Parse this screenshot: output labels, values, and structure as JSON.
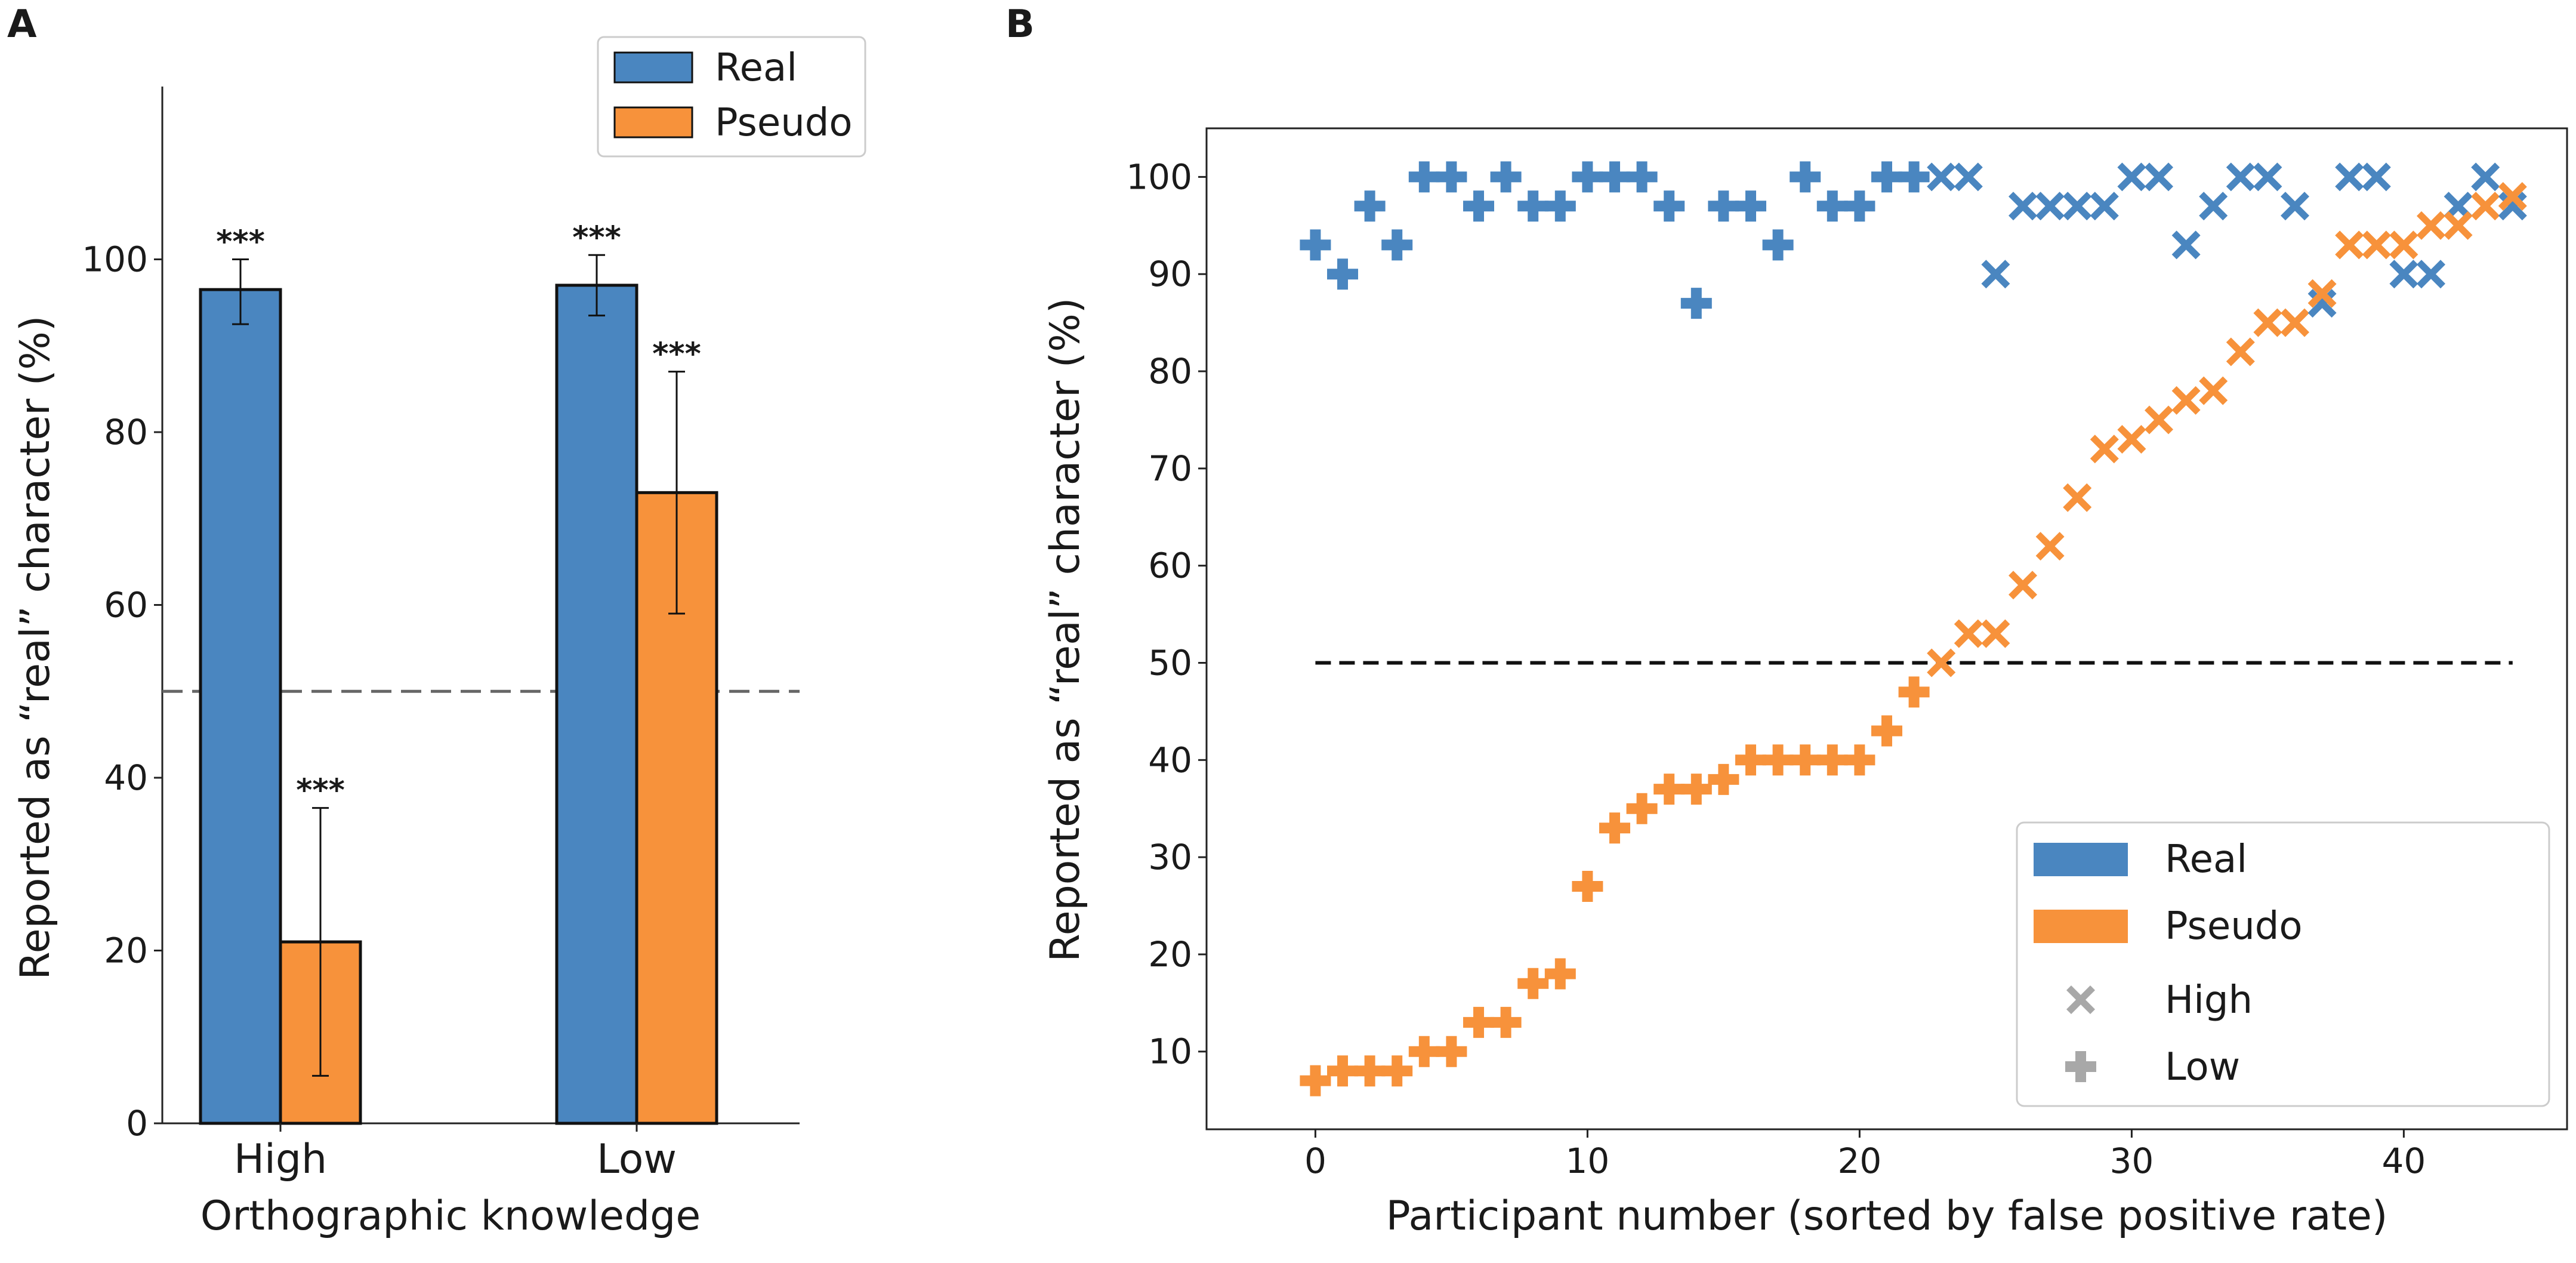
{
  "chart_data": [
    {
      "panel": "A",
      "type": "bar",
      "categories": [
        "High",
        "Low"
      ],
      "series": [
        {
          "name": "Real",
          "color": "#4a86c0",
          "values": [
            96.5,
            97
          ],
          "err_low": [
            92.5,
            93.5
          ],
          "err_high": [
            100,
            100.5
          ],
          "stars": [
            "***",
            "***"
          ]
        },
        {
          "name": "Pseudo",
          "color": "#f7923b",
          "values": [
            21,
            73
          ],
          "err_low": [
            5.5,
            59
          ],
          "err_high": [
            36.5,
            87
          ],
          "stars": [
            "***",
            "***"
          ]
        }
      ],
      "chance_level": 50,
      "xlabel": "Orthographic knowledge",
      "ylabel": "Reported as “real” character (%)",
      "ylim": [
        0,
        120
      ],
      "yticks": [
        "0",
        "20",
        "40",
        "60",
        "80",
        "100"
      ],
      "legend": [
        "Real",
        "Pseudo"
      ],
      "legend_position": "top-right"
    },
    {
      "panel": "B",
      "type": "scatter",
      "xlabel": "Participant number (sorted by false positive rate)",
      "ylabel": "Reported as “real” character (%)",
      "xlim": [
        -4,
        46
      ],
      "ylim": [
        2,
        105
      ],
      "xticks": [
        "0",
        "10",
        "20",
        "30",
        "40"
      ],
      "yticks": [
        "10",
        "20",
        "30",
        "40",
        "50",
        "60",
        "70",
        "80",
        "90",
        "100"
      ],
      "chance_level": 50,
      "chance_range": [
        0,
        44
      ],
      "participants": [
        {
          "x": 0,
          "real": 93,
          "pseudo": 7,
          "group": "Low"
        },
        {
          "x": 1,
          "real": 90,
          "pseudo": 8,
          "group": "Low"
        },
        {
          "x": 2,
          "real": 97,
          "pseudo": 8,
          "group": "Low"
        },
        {
          "x": 3,
          "real": 93,
          "pseudo": 8,
          "group": "Low"
        },
        {
          "x": 4,
          "real": 100,
          "pseudo": 10,
          "group": "Low"
        },
        {
          "x": 5,
          "real": 100,
          "pseudo": 10,
          "group": "Low"
        },
        {
          "x": 6,
          "real": 97,
          "pseudo": 13,
          "group": "Low"
        },
        {
          "x": 7,
          "real": 100,
          "pseudo": 13,
          "group": "Low"
        },
        {
          "x": 8,
          "real": 97,
          "pseudo": 17,
          "group": "Low"
        },
        {
          "x": 9,
          "real": 97,
          "pseudo": 18,
          "group": "Low"
        },
        {
          "x": 10,
          "real": 100,
          "pseudo": 27,
          "group": "Low"
        },
        {
          "x": 11,
          "real": 100,
          "pseudo": 33,
          "group": "Low"
        },
        {
          "x": 12,
          "real": 100,
          "pseudo": 35,
          "group": "Low"
        },
        {
          "x": 13,
          "real": 97,
          "pseudo": 37,
          "group": "Low"
        },
        {
          "x": 14,
          "real": 87,
          "pseudo": 37,
          "group": "Low"
        },
        {
          "x": 15,
          "real": 97,
          "pseudo": 38,
          "group": "Low"
        },
        {
          "x": 16,
          "real": 97,
          "pseudo": 40,
          "group": "Low"
        },
        {
          "x": 17,
          "real": 93,
          "pseudo": 40,
          "group": "Low"
        },
        {
          "x": 18,
          "real": 100,
          "pseudo": 40,
          "group": "Low"
        },
        {
          "x": 19,
          "real": 97,
          "pseudo": 40,
          "group": "Low"
        },
        {
          "x": 20,
          "real": 97,
          "pseudo": 40,
          "group": "Low"
        },
        {
          "x": 21,
          "real": 100,
          "pseudo": 43,
          "group": "Low"
        },
        {
          "x": 22,
          "real": 100,
          "pseudo": 47,
          "group": "Low"
        },
        {
          "x": 23,
          "real": 100,
          "pseudo": 50,
          "group": "High"
        },
        {
          "x": 24,
          "real": 100,
          "pseudo": 53,
          "group": "High"
        },
        {
          "x": 25,
          "real": 90,
          "pseudo": 53,
          "group": "High"
        },
        {
          "x": 26,
          "real": 97,
          "pseudo": 58,
          "group": "High"
        },
        {
          "x": 27,
          "real": 97,
          "pseudo": 62,
          "group": "High"
        },
        {
          "x": 28,
          "real": 97,
          "pseudo": 67,
          "group": "High"
        },
        {
          "x": 29,
          "real": 97,
          "pseudo": 72,
          "group": "High"
        },
        {
          "x": 30,
          "real": 100,
          "pseudo": 73,
          "group": "High"
        },
        {
          "x": 31,
          "real": 100,
          "pseudo": 75,
          "group": "High"
        },
        {
          "x": 32,
          "real": 93,
          "pseudo": 77,
          "group": "High"
        },
        {
          "x": 33,
          "real": 97,
          "pseudo": 78,
          "group": "High"
        },
        {
          "x": 34,
          "real": 100,
          "pseudo": 82,
          "group": "High"
        },
        {
          "x": 35,
          "real": 100,
          "pseudo": 85,
          "group": "High"
        },
        {
          "x": 36,
          "real": 97,
          "pseudo": 85,
          "group": "High"
        },
        {
          "x": 37,
          "real": 87,
          "pseudo": 88,
          "group": "High"
        },
        {
          "x": 38,
          "real": 100,
          "pseudo": 93,
          "group": "High"
        },
        {
          "x": 39,
          "real": 100,
          "pseudo": 93,
          "group": "High"
        },
        {
          "x": 40,
          "real": 90,
          "pseudo": 93,
          "group": "High"
        },
        {
          "x": 41,
          "real": 90,
          "pseudo": 95,
          "group": "High"
        },
        {
          "x": 42,
          "real": 97,
          "pseudo": 95,
          "group": "High"
        },
        {
          "x": 43,
          "real": 100,
          "pseudo": 97,
          "group": "High"
        },
        {
          "x": 44,
          "real": 97,
          "pseudo": 98,
          "group": "High"
        }
      ],
      "series": [
        {
          "name": "Real",
          "color": "#4a86c0"
        },
        {
          "name": "Pseudo",
          "color": "#f7923b"
        }
      ],
      "markers": [
        {
          "name": "High",
          "symbol": "x"
        },
        {
          "name": "Low",
          "symbol": "plus"
        }
      ],
      "legend_position": "bottom-right"
    }
  ],
  "labels": {
    "panel_a": "A",
    "panel_b": "B"
  },
  "colors": {
    "real": "#4a86c0",
    "pseudo": "#f7923b",
    "marker_legend": "#a8a8a8",
    "chance_line": "#222222"
  }
}
